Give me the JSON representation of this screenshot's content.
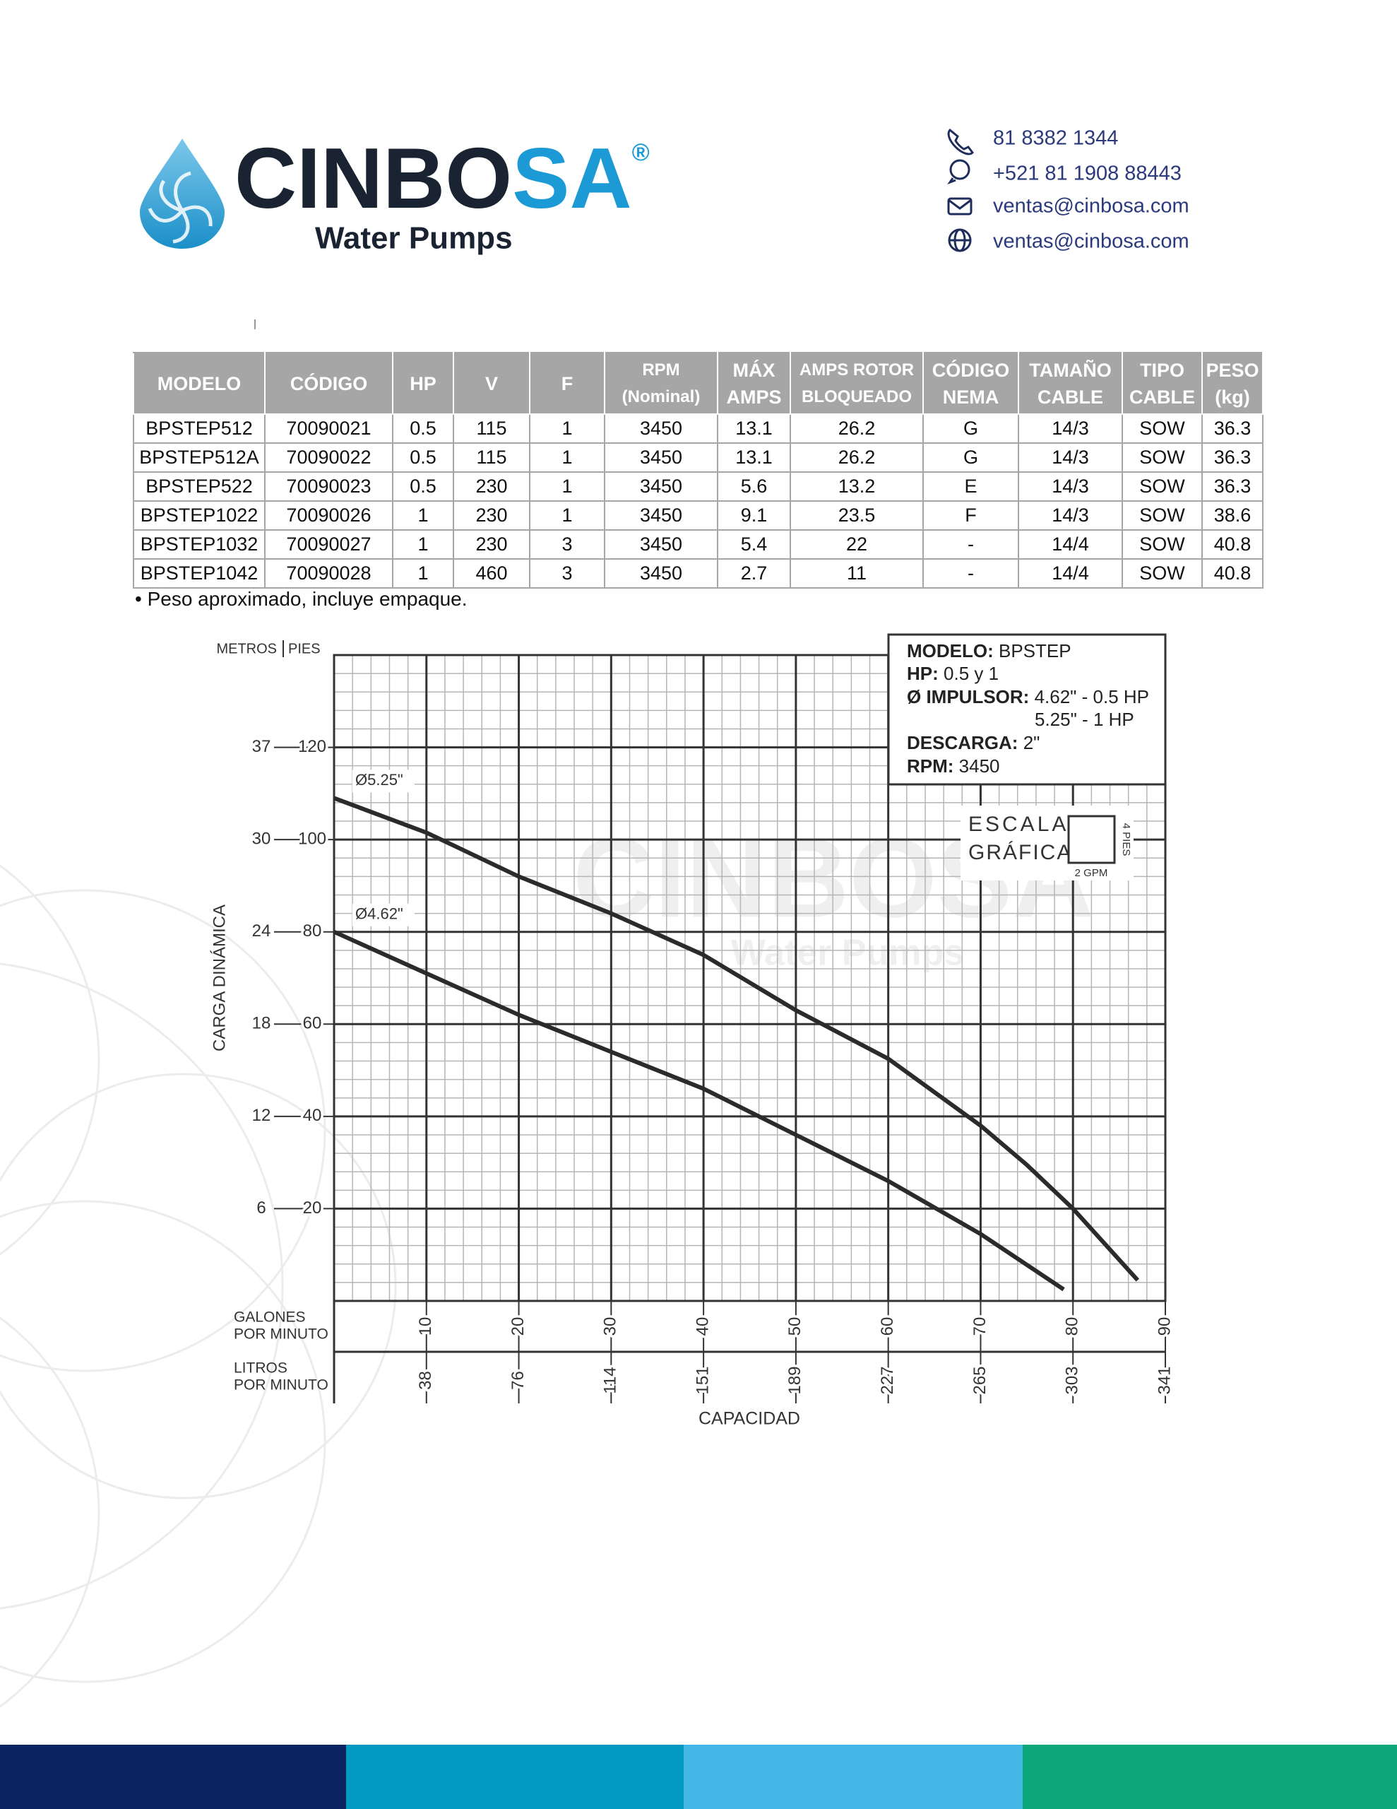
{
  "header": {
    "logo": {
      "name_dark": "CINBO",
      "name_accent": "SA",
      "registered": "®",
      "tagline": "Water Pumps"
    },
    "contacts": [
      "81 8382 1344",
      "+521 81 1908 88443",
      "ventas@cinbosa.com",
      "ventas@cinbosa.com"
    ]
  },
  "table": {
    "columns": [
      [
        "MODELO"
      ],
      [
        "CÓDIGO"
      ],
      [
        "HP"
      ],
      [
        "V"
      ],
      [
        "F"
      ],
      [
        "RPM",
        "(Nominal)"
      ],
      [
        "MÁX",
        "AMPS"
      ],
      [
        "AMPS ROTOR",
        "BLOQUEADO"
      ],
      [
        "CÓDIGO",
        "NEMA"
      ],
      [
        "TAMAÑO",
        "CABLE"
      ],
      [
        "TIPO",
        "CABLE"
      ],
      [
        "PESO",
        "(kg)"
      ]
    ],
    "rows": [
      [
        "BPSTEP512",
        "70090021",
        "0.5",
        "115",
        "1",
        "3450",
        "13.1",
        "26.2",
        "G",
        "14/3",
        "SOW",
        "36.3"
      ],
      [
        "BPSTEP512A",
        "70090022",
        "0.5",
        "115",
        "1",
        "3450",
        "13.1",
        "26.2",
        "G",
        "14/3",
        "SOW",
        "36.3"
      ],
      [
        "BPSTEP522",
        "70090023",
        "0.5",
        "230",
        "1",
        "3450",
        "5.6",
        "13.2",
        "E",
        "14/3",
        "SOW",
        "36.3"
      ],
      [
        "BPSTEP1022",
        "70090026",
        "1",
        "230",
        "1",
        "3450",
        "9.1",
        "23.5",
        "F",
        "14/3",
        "SOW",
        "38.6"
      ],
      [
        "BPSTEP1032",
        "70090027",
        "1",
        "230",
        "3",
        "3450",
        "5.4",
        "22",
        "-",
        "14/4",
        "SOW",
        "40.8"
      ],
      [
        "BPSTEP1042",
        "70090028",
        "1",
        "460",
        "3",
        "3450",
        "2.7",
        "11",
        "-",
        "14/4",
        "SOW",
        "40.8"
      ]
    ],
    "footnote": "• Peso aproximado, incluye empaque."
  },
  "chart_data": {
    "type": "line",
    "y_title": "CARGA DINÁMICA",
    "y_unit_secondary": "METROS",
    "y_unit": "PIES",
    "x_unit": [
      "GALONES",
      "POR MINUTO"
    ],
    "x_unit_secondary": [
      "LITROS",
      "POR MINUTO"
    ],
    "x_title": "CAPACIDAD",
    "xlim": [
      0,
      90
    ],
    "ylim": [
      0,
      140
    ],
    "xticks": [
      10,
      20,
      30,
      40,
      50,
      60,
      70,
      80,
      90
    ],
    "yticks": [
      20,
      40,
      60,
      80,
      100,
      120
    ],
    "x_secondary_ticks": [
      {
        "value": 10,
        "label": "38"
      },
      {
        "value": 20,
        "label": "76"
      },
      {
        "value": 30,
        "label": "114"
      },
      {
        "value": 40,
        "label": "151"
      },
      {
        "value": 50,
        "label": "189"
      },
      {
        "value": 60,
        "label": "227"
      },
      {
        "value": 70,
        "label": "265"
      },
      {
        "value": 80,
        "label": "303"
      },
      {
        "value": 90,
        "label": "341"
      }
    ],
    "y_secondary_ticks": [
      {
        "value": 20,
        "label": "6"
      },
      {
        "value": 40,
        "label": "12"
      },
      {
        "value": 60,
        "label": "18"
      },
      {
        "value": 80,
        "label": "24"
      },
      {
        "value": 100,
        "label": "30"
      },
      {
        "value": 120,
        "label": "37"
      }
    ],
    "grid": true,
    "minor_grid": true,
    "series": [
      {
        "name": "Ø5.25\"",
        "color": "#2b2b2b",
        "x": [
          0,
          10,
          20,
          30,
          40,
          50,
          60,
          70,
          75,
          80,
          87
        ],
        "values": [
          109,
          101.5,
          92,
          84,
          75,
          63,
          52.5,
          38,
          29.5,
          20,
          4.5
        ]
      },
      {
        "name": "Ø4.62\"",
        "color": "#2b2b2b",
        "x": [
          0,
          10,
          20,
          30,
          40,
          50,
          60,
          70,
          79
        ],
        "values": [
          80,
          71,
          62,
          54,
          46,
          36,
          26,
          14.5,
          2.5
        ]
      }
    ],
    "info_box": {
      "modelo": {
        "key": "MODELO:",
        "value": "BPSTEP"
      },
      "hp": {
        "key": "HP:",
        "value": "0.5 y 1"
      },
      "impulsor": {
        "key": "Ø IMPULSOR:",
        "value": "4.62\" - 0.5 HP",
        "value_2": "5.25\" - 1 HP"
      },
      "descarga": {
        "key": "DESCARGA:",
        "value": "2\""
      },
      "rpm": {
        "key": "RPM:",
        "value": "3450"
      }
    },
    "scale": {
      "title": [
        "ESCALA",
        "GRÁFICA"
      ],
      "height": "4 PIES",
      "width": "2 GPM"
    },
    "watermark": {
      "name": "CINBOSA",
      "tagline": "Water Pumps"
    }
  }
}
